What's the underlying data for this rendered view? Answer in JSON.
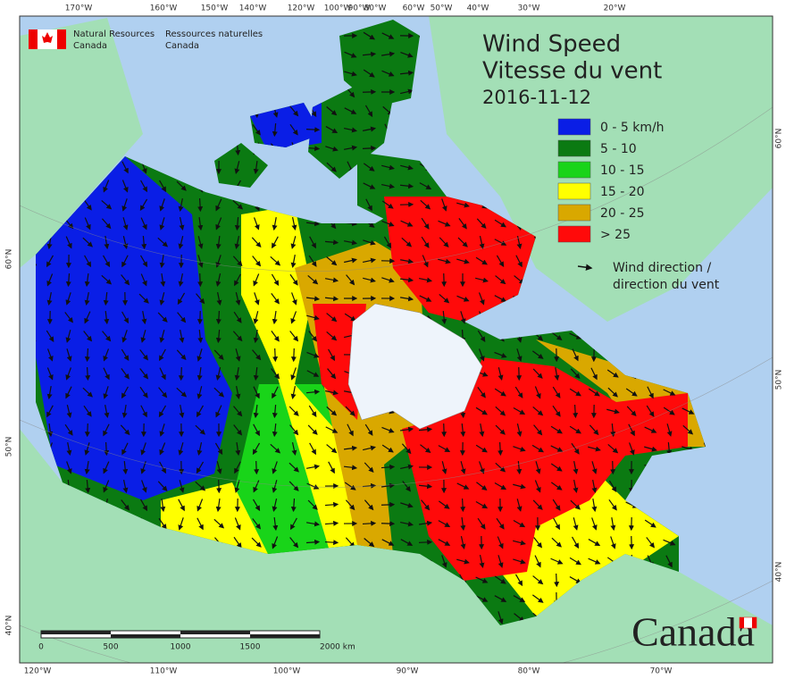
{
  "agency": {
    "en": [
      "Natural Resources",
      "Canada"
    ],
    "fr": [
      "Ressources naturelles",
      "Canada"
    ]
  },
  "header": {
    "title_en": "Wind Speed",
    "title_fr": "Vitesse du vent",
    "date": "2016-11-12"
  },
  "legend": {
    "items": [
      {
        "label": "0 - 5 km/h",
        "color": "#0a1ee6"
      },
      {
        "label": "5 - 10",
        "color": "#0b7a12"
      },
      {
        "label": "10 - 15",
        "color": "#19d419"
      },
      {
        "label": "15 - 20",
        "color": "#ffff00"
      },
      {
        "label": "20 - 25",
        "color": "#d9a800"
      },
      {
        "label": "> 25",
        "color": "#ff0a0a"
      }
    ],
    "arrow_label": [
      "Wind direction /",
      "direction du vent"
    ]
  },
  "graticule": {
    "top": [
      "170°W",
      "160°W",
      "150°W",
      "140°W",
      "120°W",
      "100°W",
      "90°W",
      "80°W",
      "60°W",
      "50°W",
      "40°W",
      "30°W",
      "20°W"
    ],
    "bottom": [
      "120°W",
      "110°W",
      "100°W",
      "90°W",
      "80°W",
      "70°W"
    ],
    "left": [
      "60°N",
      "50°N",
      "40°N"
    ],
    "right": [
      "60°N",
      "50°N",
      "40°N"
    ]
  },
  "scale_bar": {
    "labels": [
      "0",
      "500",
      "1000",
      "1500",
      "2000 km"
    ]
  },
  "wordmark": "Canada"
}
